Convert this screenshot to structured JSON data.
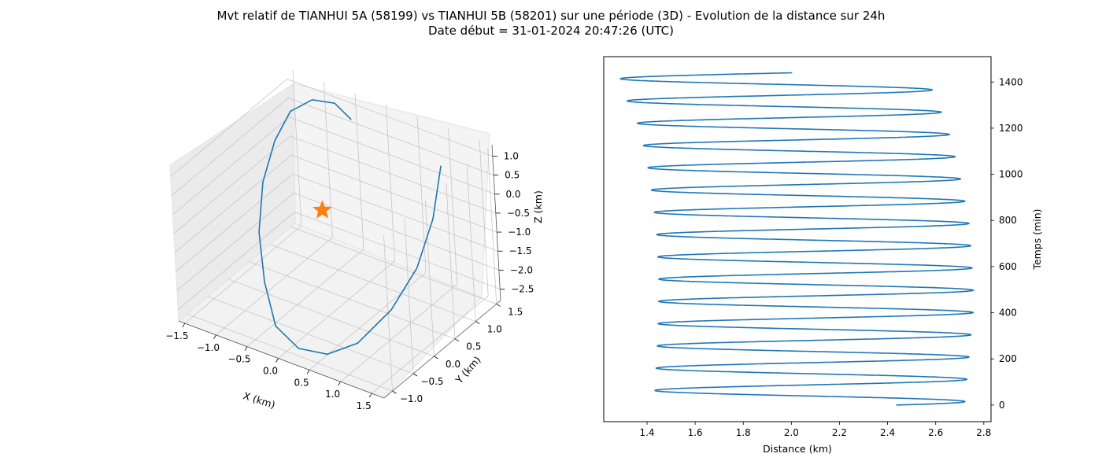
{
  "figure": {
    "title_line1": "Mvt relatif de TIANHUI 5A (58199) vs TIANHUI 5B (58201) sur une période (3D) - Evolution de la distance sur 24h",
    "title_line2": "Date début = 31-01-2024 20:47:26 (UTC)"
  },
  "colors": {
    "series": "#1f77b4",
    "marker": "#ff7f0e",
    "grid": "#b0b0b0"
  },
  "chart_data": [
    {
      "type": "line",
      "projection": "3d",
      "xlabel": "X (km)",
      "ylabel": "Y (km)",
      "zlabel": "Z (km)",
      "x_ticks": [
        "−1.5",
        "−1.0",
        "−0.5",
        "0.0",
        "0.5",
        "1.0",
        "1.5"
      ],
      "y_ticks": [
        "−1.0",
        "−0.5",
        "0.0",
        "0.5",
        "1.0",
        "1.5"
      ],
      "z_ticks": [
        "1.0",
        "0.5",
        "0.0",
        "−0.5",
        "−1.0",
        "−1.5",
        "−2.0",
        "−2.5"
      ],
      "xlim": [
        -1.6,
        1.7
      ],
      "ylim": [
        -1.2,
        1.6
      ],
      "zlim": [
        -2.8,
        1.3
      ],
      "grid": true,
      "marker": {
        "symbol": "star",
        "x": 0,
        "y": 0,
        "z": 0
      },
      "series": [
        {
          "x": [
            1.2,
            1.45,
            1.5,
            1.4,
            1.1,
            0.7,
            0.2,
            -0.3,
            -0.8,
            -1.2,
            -1.45,
            -1.5,
            -1.4,
            -1.1,
            -0.7,
            -0.3
          ],
          "y": [
            1.1,
            0.5,
            0.0,
            -0.5,
            -0.9,
            -1.05,
            -1.0,
            -0.8,
            -0.3,
            0.2,
            0.7,
            1.1,
            1.35,
            1.45,
            1.4,
            1.2
          ],
          "z": [
            0.9,
            0.2,
            -0.6,
            -1.3,
            -2.0,
            -2.4,
            -2.6,
            -2.5,
            -2.1,
            -1.5,
            -0.8,
            -0.1,
            0.5,
            0.9,
            1.1,
            1.1
          ]
        }
      ]
    },
    {
      "type": "line",
      "xlabel": "Distance (km)",
      "ylabel": "Temps (min)",
      "y_axis_side": "right",
      "x_ticks": [
        1.4,
        1.6,
        1.8,
        2.0,
        2.2,
        2.4,
        2.6,
        2.8
      ],
      "y_ticks": [
        0,
        200,
        400,
        600,
        800,
        1000,
        1200,
        1400
      ],
      "xlim": [
        1.22,
        2.83
      ],
      "ylim": [
        -72,
        1510
      ],
      "grid": false,
      "series": [
        {
          "period_min": 96.5,
          "t_end": 1440,
          "max_distance": [
            [
              0,
              2.72
            ],
            [
              450,
              2.76
            ],
            [
              780,
              2.74
            ],
            [
              1000,
              2.7
            ],
            [
              1200,
              2.65
            ],
            [
              1380,
              2.58
            ]
          ],
          "min_distance": [
            [
              0,
              1.43
            ],
            [
              300,
              1.445
            ],
            [
              520,
              1.45
            ],
            [
              760,
              1.44
            ],
            [
              1000,
              1.41
            ],
            [
              1200,
              1.37
            ],
            [
              1380,
              1.29
            ]
          ]
        }
      ]
    }
  ]
}
